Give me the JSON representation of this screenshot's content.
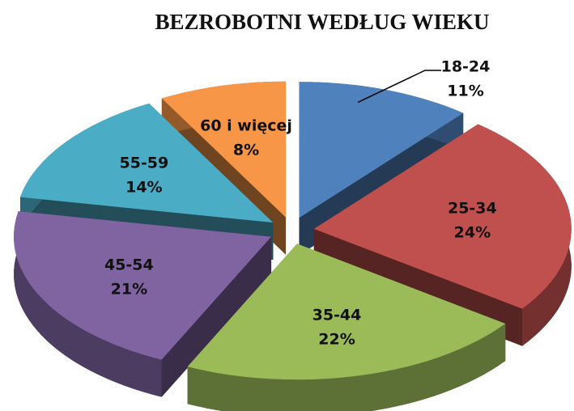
{
  "chart_data": {
    "type": "pie",
    "title": "BEZROBOTNI WEDŁUG WIEKU",
    "categories": [
      "18-24",
      "25-34",
      "35-44",
      "45-54",
      "55-59",
      "60 i więcej"
    ],
    "values": [
      11,
      24,
      22,
      21,
      14,
      8
    ],
    "value_labels": [
      "11%",
      "24%",
      "22%",
      "21%",
      "14%",
      "8%"
    ],
    "colors": [
      "#4f81bd",
      "#c0504d",
      "#9bbb59",
      "#8064a2",
      "#4bacc6",
      "#f79646"
    ]
  }
}
